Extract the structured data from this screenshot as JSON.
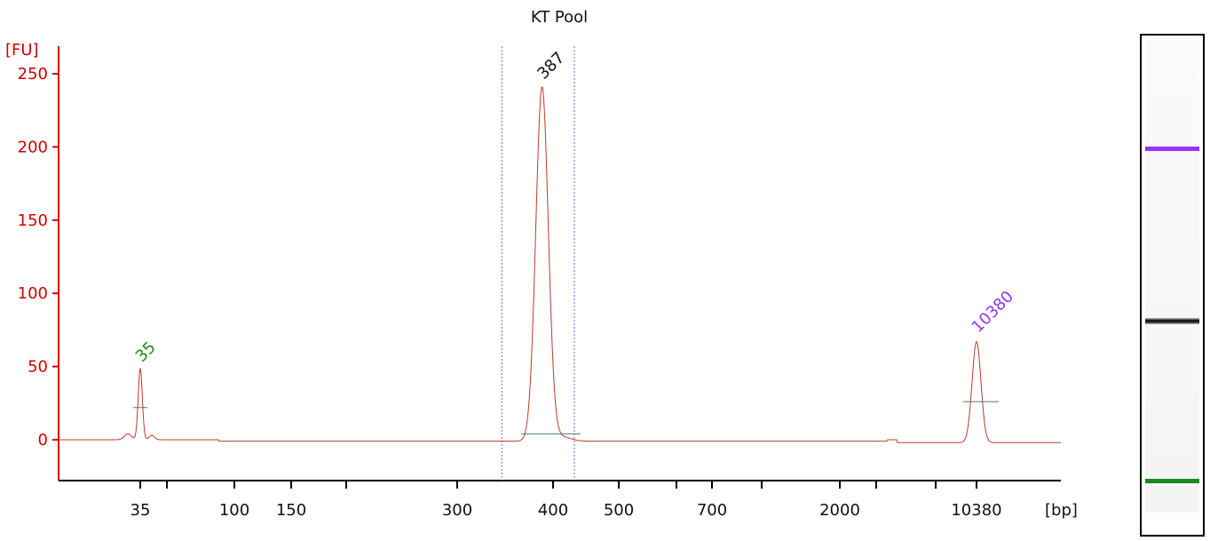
{
  "chart_data": {
    "type": "line",
    "title": "KT Pool",
    "ylabel": "[FU]",
    "xlabel": "[bp]",
    "ylim": [
      -28,
      262
    ],
    "yticks": [
      0,
      50,
      100,
      150,
      200,
      250
    ],
    "xaxis_scale": "sizing ladder (non-linear)",
    "xticks": [
      "35",
      "",
      "100",
      "150",
      "",
      "300",
      "400",
      "500",
      "",
      "700",
      "",
      "2000",
      "",
      "",
      "10380"
    ],
    "peaks": [
      {
        "label": "35",
        "size_bp": 35,
        "fu": 49,
        "color": "#1a8a1a",
        "role": "lower marker"
      },
      {
        "label": "387",
        "size_bp": 387,
        "fu": 242,
        "color": "#111111",
        "role": "sample"
      },
      {
        "label": "10380",
        "size_bp": 10380,
        "fu": 69,
        "color": "#9b30ff",
        "role": "upper marker"
      }
    ],
    "region_markers_bp": [
      343,
      430
    ],
    "trace_color": "#c0392b",
    "axis_color": "#d00000",
    "grid": false,
    "legend": "none"
  },
  "gel": {
    "bands": [
      {
        "name": "upper-marker",
        "color": "#9b30ff"
      },
      {
        "name": "sample",
        "color": "#111111"
      },
      {
        "name": "lower-marker",
        "color": "#1a8a1a"
      }
    ]
  }
}
